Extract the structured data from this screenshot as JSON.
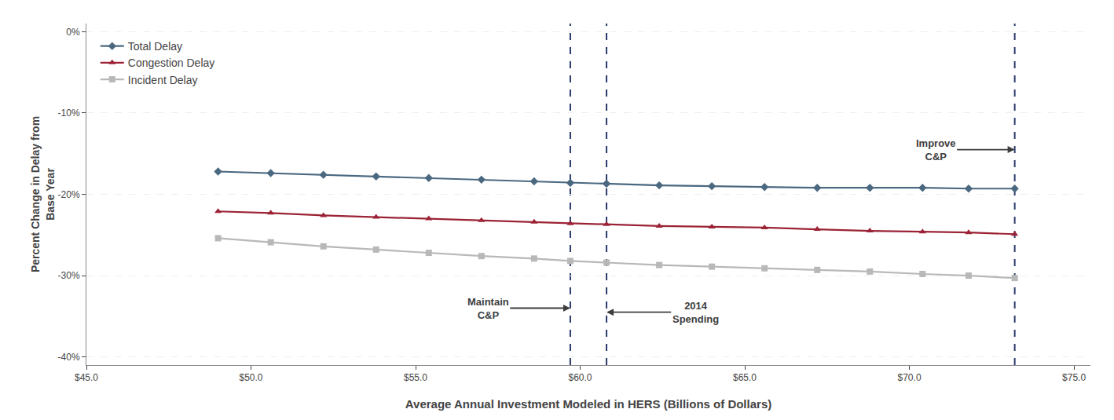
{
  "chart_data": {
    "type": "line",
    "xlabel": "Average Annual Investment Modeled in HERS (Billions of Dollars)",
    "ylabel": "Percent Change in Delay from\nBase Year",
    "x": [
      49.0,
      50.6,
      52.2,
      53.8,
      55.4,
      57.0,
      58.6,
      59.7,
      60.8,
      62.4,
      64.0,
      65.6,
      67.2,
      68.8,
      70.4,
      71.8,
      73.2
    ],
    "series": [
      {
        "name": "Total Delay",
        "color": "#4a6880",
        "marker": "diamond",
        "values": [
          -17.2,
          -17.4,
          -17.6,
          -17.8,
          -18.0,
          -18.2,
          -18.4,
          -18.6,
          -18.7,
          -18.9,
          -19.0,
          -19.1,
          -19.2,
          -19.2,
          -19.2,
          -19.3,
          -19.3
        ]
      },
      {
        "name": "Congestion Delay",
        "color": "#9b2335",
        "marker": "triangle-up",
        "values": [
          -22.1,
          -22.3,
          -22.6,
          -22.8,
          -23.0,
          -23.2,
          -23.4,
          -23.6,
          -23.7,
          -23.9,
          -24.0,
          -24.1,
          -24.3,
          -24.5,
          -24.6,
          -24.7,
          -24.9
        ]
      },
      {
        "name": "Incident Delay",
        "color": "#b8b8b8",
        "marker": "square",
        "values": [
          -25.4,
          -25.9,
          -26.4,
          -26.8,
          -27.2,
          -27.6,
          -27.9,
          -28.2,
          -28.4,
          -28.7,
          -28.9,
          -29.1,
          -29.3,
          -29.5,
          -29.8,
          -30.0,
          -30.3
        ]
      }
    ],
    "vlines": [
      {
        "x": 59.7,
        "color": "#2b3a6b",
        "line_style": "dashed"
      },
      {
        "x": 60.8,
        "color": "#2b3a6b",
        "line_style": "dashed"
      },
      {
        "x": 73.2,
        "color": "#2b3a6b",
        "line_style": "dashed"
      }
    ],
    "annotations": [
      {
        "text": "Maintain\nC&P",
        "x": 59.7,
        "y": -34.0,
        "text_x": 57.2,
        "color": "#3d3d3d"
      },
      {
        "text": "2014\nSpending",
        "x": 60.8,
        "y": -34.5,
        "text_x": 63.5,
        "color": "#3d3d3d"
      },
      {
        "text": "Improve\nC&P",
        "x": 73.2,
        "y": -14.5,
        "text_x": 70.8,
        "color": "#3d3d3d"
      }
    ],
    "xlim": [
      45.0,
      75.5
    ],
    "ylim": [
      -41,
      1
    ],
    "xticks": [
      {
        "value": 45.0,
        "label": "$45.0"
      },
      {
        "value": 50.0,
        "label": "$50.0"
      },
      {
        "value": 55.0,
        "label": "$55.0"
      },
      {
        "value": 60.0,
        "label": "$60.0"
      },
      {
        "value": 65.0,
        "label": "$65.0"
      },
      {
        "value": 70.0,
        "label": "$70.0"
      },
      {
        "value": 75.0,
        "label": "$75.0"
      }
    ],
    "yticks": [
      {
        "value": 0,
        "label": "0%"
      },
      {
        "value": -10,
        "label": "-10%"
      },
      {
        "value": -20,
        "label": "-20%"
      },
      {
        "value": -30,
        "label": "-30%"
      },
      {
        "value": -40,
        "label": "-40%"
      }
    ],
    "grid": "y",
    "legend": "upper left"
  }
}
